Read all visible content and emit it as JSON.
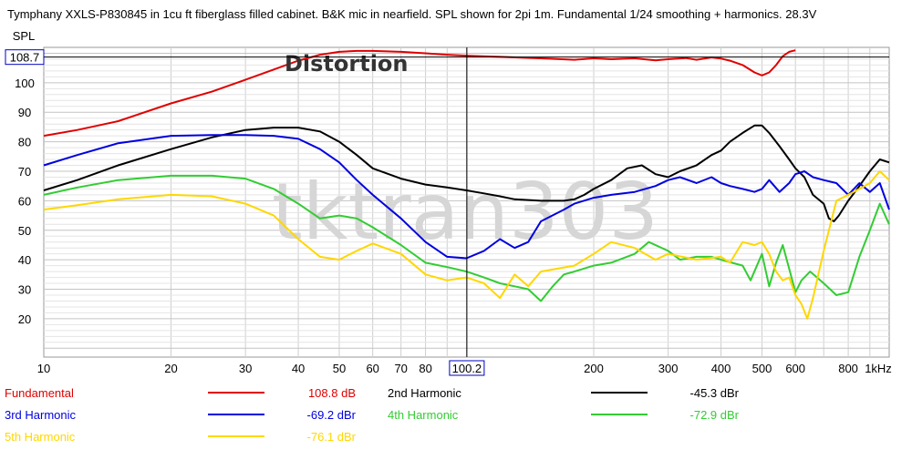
{
  "chart_data": {
    "type": "line",
    "title": "Tymphany XXLS-P830845 in 1cu ft fiberglass filled cabinet. B&K mic in nearfield. SPL shown for 2pi 1m. Fundamental 1/24 smoothing + harmonics. 28.3V",
    "ylabel": "SPL",
    "xscale": "log",
    "xlim": [
      10,
      1000
    ],
    "ylim": [
      7,
      112
    ],
    "grid": true,
    "watermark": "tktran303",
    "annotation": "Distortion",
    "cursor": {
      "x_label": "100.2",
      "y_label": "108.7",
      "x": 100.2,
      "y": 108.7
    },
    "x_ticks": [
      {
        "v": 10,
        "label": "10"
      },
      {
        "v": 20,
        "label": "20"
      },
      {
        "v": 30,
        "label": "30"
      },
      {
        "v": 40,
        "label": "40"
      },
      {
        "v": 50,
        "label": "50"
      },
      {
        "v": 60,
        "label": "60"
      },
      {
        "v": 70,
        "label": "70"
      },
      {
        "v": 80,
        "label": "80"
      },
      {
        "v": 200,
        "label": "200"
      },
      {
        "v": 300,
        "label": "300"
      },
      {
        "v": 400,
        "label": "400"
      },
      {
        "v": 500,
        "label": "500"
      },
      {
        "v": 600,
        "label": "600"
      },
      {
        "v": 800,
        "label": "800"
      },
      {
        "v": 1000,
        "label": "1kHz"
      }
    ],
    "y_ticks": [
      20,
      30,
      40,
      50,
      60,
      70,
      80,
      90,
      100
    ],
    "series": [
      {
        "name": "Fundamental",
        "value": "108.8 dB",
        "color": "#e00000",
        "points": [
          [
            10,
            82
          ],
          [
            12,
            84
          ],
          [
            15,
            87
          ],
          [
            20,
            93
          ],
          [
            25,
            97
          ],
          [
            30,
            101
          ],
          [
            35,
            104.5
          ],
          [
            40,
            107.5
          ],
          [
            45,
            109.5
          ],
          [
            50,
            110.5
          ],
          [
            55,
            110.8
          ],
          [
            60,
            110.8
          ],
          [
            70,
            110.5
          ],
          [
            80,
            110
          ],
          [
            90,
            109.5
          ],
          [
            100,
            109.2
          ],
          [
            120,
            108.8
          ],
          [
            150,
            108.3
          ],
          [
            180,
            107.8
          ],
          [
            200,
            108.3
          ],
          [
            220,
            108
          ],
          [
            250,
            108.3
          ],
          [
            280,
            107.6
          ],
          [
            300,
            108
          ],
          [
            330,
            108.4
          ],
          [
            350,
            107.8
          ],
          [
            380,
            108.6
          ],
          [
            400,
            108.2
          ],
          [
            420,
            107.5
          ],
          [
            450,
            106
          ],
          [
            480,
            103.5
          ],
          [
            500,
            102.5
          ],
          [
            520,
            103.5
          ],
          [
            540,
            106
          ],
          [
            560,
            109
          ],
          [
            580,
            110.5
          ],
          [
            600,
            111
          ]
        ]
      },
      {
        "name": "2nd Harmonic",
        "value": "-45.3 dBr",
        "color": "#000000",
        "points": [
          [
            10,
            63.5
          ],
          [
            12,
            67
          ],
          [
            15,
            72
          ],
          [
            20,
            77.5
          ],
          [
            25,
            81.5
          ],
          [
            30,
            84
          ],
          [
            35,
            84.8
          ],
          [
            40,
            84.8
          ],
          [
            45,
            83.5
          ],
          [
            50,
            80
          ],
          [
            55,
            75.5
          ],
          [
            60,
            71
          ],
          [
            70,
            67.5
          ],
          [
            80,
            65.5
          ],
          [
            90,
            64.5
          ],
          [
            100,
            63.5
          ],
          [
            110,
            62.5
          ],
          [
            120,
            61.5
          ],
          [
            130,
            60.5
          ],
          [
            150,
            60
          ],
          [
            170,
            60
          ],
          [
            180,
            60.5
          ],
          [
            190,
            62
          ],
          [
            200,
            64
          ],
          [
            220,
            67
          ],
          [
            240,
            71
          ],
          [
            260,
            72
          ],
          [
            280,
            69
          ],
          [
            300,
            68
          ],
          [
            320,
            70
          ],
          [
            350,
            72
          ],
          [
            380,
            75.5
          ],
          [
            400,
            77
          ],
          [
            420,
            80
          ],
          [
            450,
            83
          ],
          [
            480,
            85.5
          ],
          [
            500,
            85.5
          ],
          [
            520,
            83
          ],
          [
            550,
            78.5
          ],
          [
            580,
            74
          ],
          [
            600,
            71
          ],
          [
            630,
            68
          ],
          [
            660,
            62
          ],
          [
            700,
            59
          ],
          [
            720,
            54
          ],
          [
            740,
            53
          ],
          [
            760,
            55
          ],
          [
            800,
            60
          ],
          [
            850,
            65
          ],
          [
            900,
            70
          ],
          [
            950,
            74
          ],
          [
            1000,
            73
          ]
        ]
      },
      {
        "name": "3rd Harmonic",
        "value": "-69.2 dBr",
        "color": "#0000e0",
        "points": [
          [
            10,
            72
          ],
          [
            12,
            75.5
          ],
          [
            15,
            79.5
          ],
          [
            20,
            82
          ],
          [
            25,
            82.3
          ],
          [
            30,
            82.3
          ],
          [
            35,
            82
          ],
          [
            40,
            81
          ],
          [
            45,
            77.5
          ],
          [
            50,
            73
          ],
          [
            55,
            67
          ],
          [
            60,
            62
          ],
          [
            70,
            54
          ],
          [
            80,
            46
          ],
          [
            90,
            41
          ],
          [
            100,
            40.5
          ],
          [
            110,
            43
          ],
          [
            120,
            47
          ],
          [
            130,
            44
          ],
          [
            140,
            46
          ],
          [
            150,
            53
          ],
          [
            170,
            57
          ],
          [
            180,
            59
          ],
          [
            200,
            61
          ],
          [
            220,
            62
          ],
          [
            250,
            63
          ],
          [
            280,
            65
          ],
          [
            300,
            67
          ],
          [
            320,
            68
          ],
          [
            350,
            66
          ],
          [
            380,
            68
          ],
          [
            400,
            66
          ],
          [
            420,
            65
          ],
          [
            450,
            64
          ],
          [
            480,
            63
          ],
          [
            500,
            64
          ],
          [
            520,
            67
          ],
          [
            550,
            63
          ],
          [
            580,
            66
          ],
          [
            600,
            69
          ],
          [
            630,
            70
          ],
          [
            660,
            68
          ],
          [
            700,
            67
          ],
          [
            750,
            66
          ],
          [
            800,
            62
          ],
          [
            850,
            66
          ],
          [
            900,
            63
          ],
          [
            950,
            66
          ],
          [
            1000,
            57
          ]
        ]
      },
      {
        "name": "4th Harmonic",
        "value": "-72.9 dBr",
        "color": "#33cc33",
        "points": [
          [
            10,
            62
          ],
          [
            12,
            64.5
          ],
          [
            15,
            67
          ],
          [
            20,
            68.5
          ],
          [
            25,
            68.5
          ],
          [
            30,
            67.5
          ],
          [
            35,
            64
          ],
          [
            40,
            59
          ],
          [
            45,
            54
          ],
          [
            50,
            55
          ],
          [
            55,
            54
          ],
          [
            60,
            51
          ],
          [
            70,
            45
          ],
          [
            80,
            39
          ],
          [
            90,
            37.5
          ],
          [
            100,
            36
          ],
          [
            110,
            34
          ],
          [
            120,
            32
          ],
          [
            130,
            31
          ],
          [
            140,
            30
          ],
          [
            150,
            26
          ],
          [
            160,
            31
          ],
          [
            170,
            35
          ],
          [
            180,
            36
          ],
          [
            200,
            38
          ],
          [
            220,
            39
          ],
          [
            250,
            42
          ],
          [
            270,
            46
          ],
          [
            300,
            43
          ],
          [
            320,
            40
          ],
          [
            350,
            41
          ],
          [
            380,
            41
          ],
          [
            400,
            40
          ],
          [
            450,
            38
          ],
          [
            470,
            33
          ],
          [
            500,
            42
          ],
          [
            520,
            31
          ],
          [
            540,
            39
          ],
          [
            560,
            45
          ],
          [
            580,
            37
          ],
          [
            600,
            29
          ],
          [
            620,
            33
          ],
          [
            650,
            36
          ],
          [
            700,
            32
          ],
          [
            750,
            28
          ],
          [
            800,
            29
          ],
          [
            850,
            41
          ],
          [
            900,
            50
          ],
          [
            950,
            59
          ],
          [
            1000,
            52
          ]
        ]
      },
      {
        "name": "5th Harmonic",
        "value": "-76.1 dBr",
        "color": "#ffd700",
        "points": [
          [
            10,
            57
          ],
          [
            12,
            58.5
          ],
          [
            15,
            60.5
          ],
          [
            20,
            62
          ],
          [
            25,
            61.5
          ],
          [
            30,
            59
          ],
          [
            35,
            55
          ],
          [
            40,
            47
          ],
          [
            45,
            41
          ],
          [
            50,
            40
          ],
          [
            55,
            43
          ],
          [
            60,
            45.5
          ],
          [
            70,
            42
          ],
          [
            80,
            35
          ],
          [
            90,
            33
          ],
          [
            100,
            34
          ],
          [
            110,
            32
          ],
          [
            120,
            27
          ],
          [
            130,
            35
          ],
          [
            140,
            31
          ],
          [
            150,
            36
          ],
          [
            180,
            38
          ],
          [
            200,
            42
          ],
          [
            220,
            46
          ],
          [
            250,
            44
          ],
          [
            280,
            40
          ],
          [
            300,
            42
          ],
          [
            350,
            40
          ],
          [
            400,
            41
          ],
          [
            420,
            39
          ],
          [
            450,
            46
          ],
          [
            480,
            45
          ],
          [
            500,
            46
          ],
          [
            520,
            42
          ],
          [
            540,
            36
          ],
          [
            560,
            33
          ],
          [
            580,
            34
          ],
          [
            600,
            28
          ],
          [
            620,
            25
          ],
          [
            640,
            20
          ],
          [
            660,
            27
          ],
          [
            700,
            43
          ],
          [
            720,
            50
          ],
          [
            750,
            60
          ],
          [
            800,
            62
          ],
          [
            850,
            64
          ],
          [
            900,
            66
          ],
          [
            950,
            70
          ],
          [
            1000,
            67
          ]
        ]
      }
    ]
  }
}
